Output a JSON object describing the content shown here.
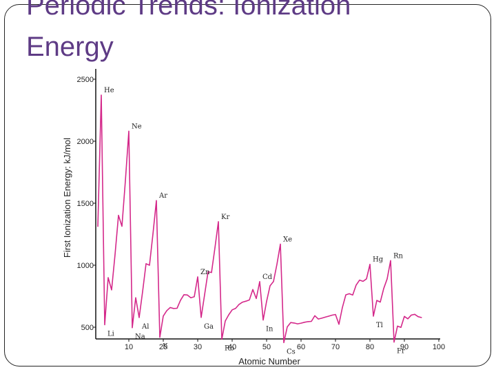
{
  "slide": {
    "title_line1": "Periodic Trends: Ionization",
    "title_line2": "Energy"
  },
  "colors": {
    "title": "#5e3b85",
    "series": "#d4288a",
    "frame": "#222222"
  },
  "chart_data": {
    "type": "line",
    "title": "",
    "xlabel": "Atomic Number",
    "ylabel": "First Ionization Energy: kJ/mol",
    "xlim": [
      0,
      100
    ],
    "ylim": [
      0,
      2500
    ],
    "xticks": [
      10,
      20,
      30,
      40,
      50,
      60,
      70,
      80,
      90,
      100
    ],
    "yticks": [
      500,
      1000,
      1500,
      2000,
      2500
    ],
    "grid": false,
    "legend": "none",
    "series": [
      {
        "x": [
          1,
          2,
          3,
          4,
          5,
          6,
          7,
          8,
          9,
          10,
          11,
          12,
          13,
          14,
          15,
          16,
          17,
          18,
          19,
          20,
          21,
          22,
          23,
          24,
          25,
          26,
          27,
          28,
          29,
          30,
          31,
          32,
          33,
          34,
          35,
          36,
          37,
          38,
          39,
          40,
          41,
          42,
          43,
          44,
          45,
          46,
          47,
          48,
          49,
          50,
          51,
          52,
          53,
          54,
          55,
          56,
          57,
          58,
          59,
          60,
          61,
          62,
          63,
          64,
          65,
          66,
          67,
          68,
          69,
          70,
          71,
          72,
          73,
          74,
          75,
          76,
          77,
          78,
          79,
          80,
          81,
          82,
          83,
          84,
          85,
          86,
          87,
          88,
          89,
          90,
          91,
          92,
          93,
          94,
          95
        ],
        "y": [
          1312,
          2372,
          520,
          900,
          801,
          1086,
          1402,
          1314,
          1681,
          2081,
          496,
          738,
          578,
          787,
          1012,
          1000,
          1251,
          1521,
          419,
          590,
          633,
          659,
          651,
          653,
          717,
          762,
          760,
          737,
          746,
          906,
          579,
          762,
          947,
          941,
          1140,
          1351,
          403,
          550,
          600,
          640,
          652,
          684,
          702,
          710,
          720,
          804,
          731,
          868,
          558,
          709,
          834,
          869,
          1008,
          1170,
          376,
          503,
          538,
          534,
          527,
          533,
          540,
          545,
          547,
          593,
          566,
          573,
          581,
          589,
          597,
          603,
          524,
          659,
          761,
          770,
          760,
          840,
          880,
          870,
          890,
          1007,
          589,
          716,
          703,
          812,
          890,
          1037,
          380,
          509,
          499,
          587,
          568,
          598,
          604,
          585,
          578
        ]
      }
    ],
    "annotations": [
      {
        "text": "He",
        "x": 2,
        "y": 2372
      },
      {
        "text": "Ne",
        "x": 10,
        "y": 2081
      },
      {
        "text": "Ar",
        "x": 18,
        "y": 1521
      },
      {
        "text": "Kr",
        "x": 36,
        "y": 1351
      },
      {
        "text": "Xe",
        "x": 54,
        "y": 1170
      },
      {
        "text": "Hg",
        "x": 80,
        "y": 1007
      },
      {
        "text": "Rn",
        "x": 86,
        "y": 1037
      },
      {
        "text": "Zn",
        "x": 30,
        "y": 906
      },
      {
        "text": "Cd",
        "x": 48,
        "y": 868
      },
      {
        "text": "Li",
        "x": 3,
        "y": 520
      },
      {
        "text": "Na",
        "x": 11,
        "y": 496
      },
      {
        "text": "Al",
        "x": 13,
        "y": 578
      },
      {
        "text": "K",
        "x": 19,
        "y": 419
      },
      {
        "text": "Ga",
        "x": 31,
        "y": 579
      },
      {
        "text": "Rb",
        "x": 37,
        "y": 403
      },
      {
        "text": "In",
        "x": 49,
        "y": 558
      },
      {
        "text": "Cs",
        "x": 55,
        "y": 376
      },
      {
        "text": "Tl",
        "x": 81,
        "y": 589
      },
      {
        "text": "Fr",
        "x": 87,
        "y": 380
      }
    ]
  }
}
